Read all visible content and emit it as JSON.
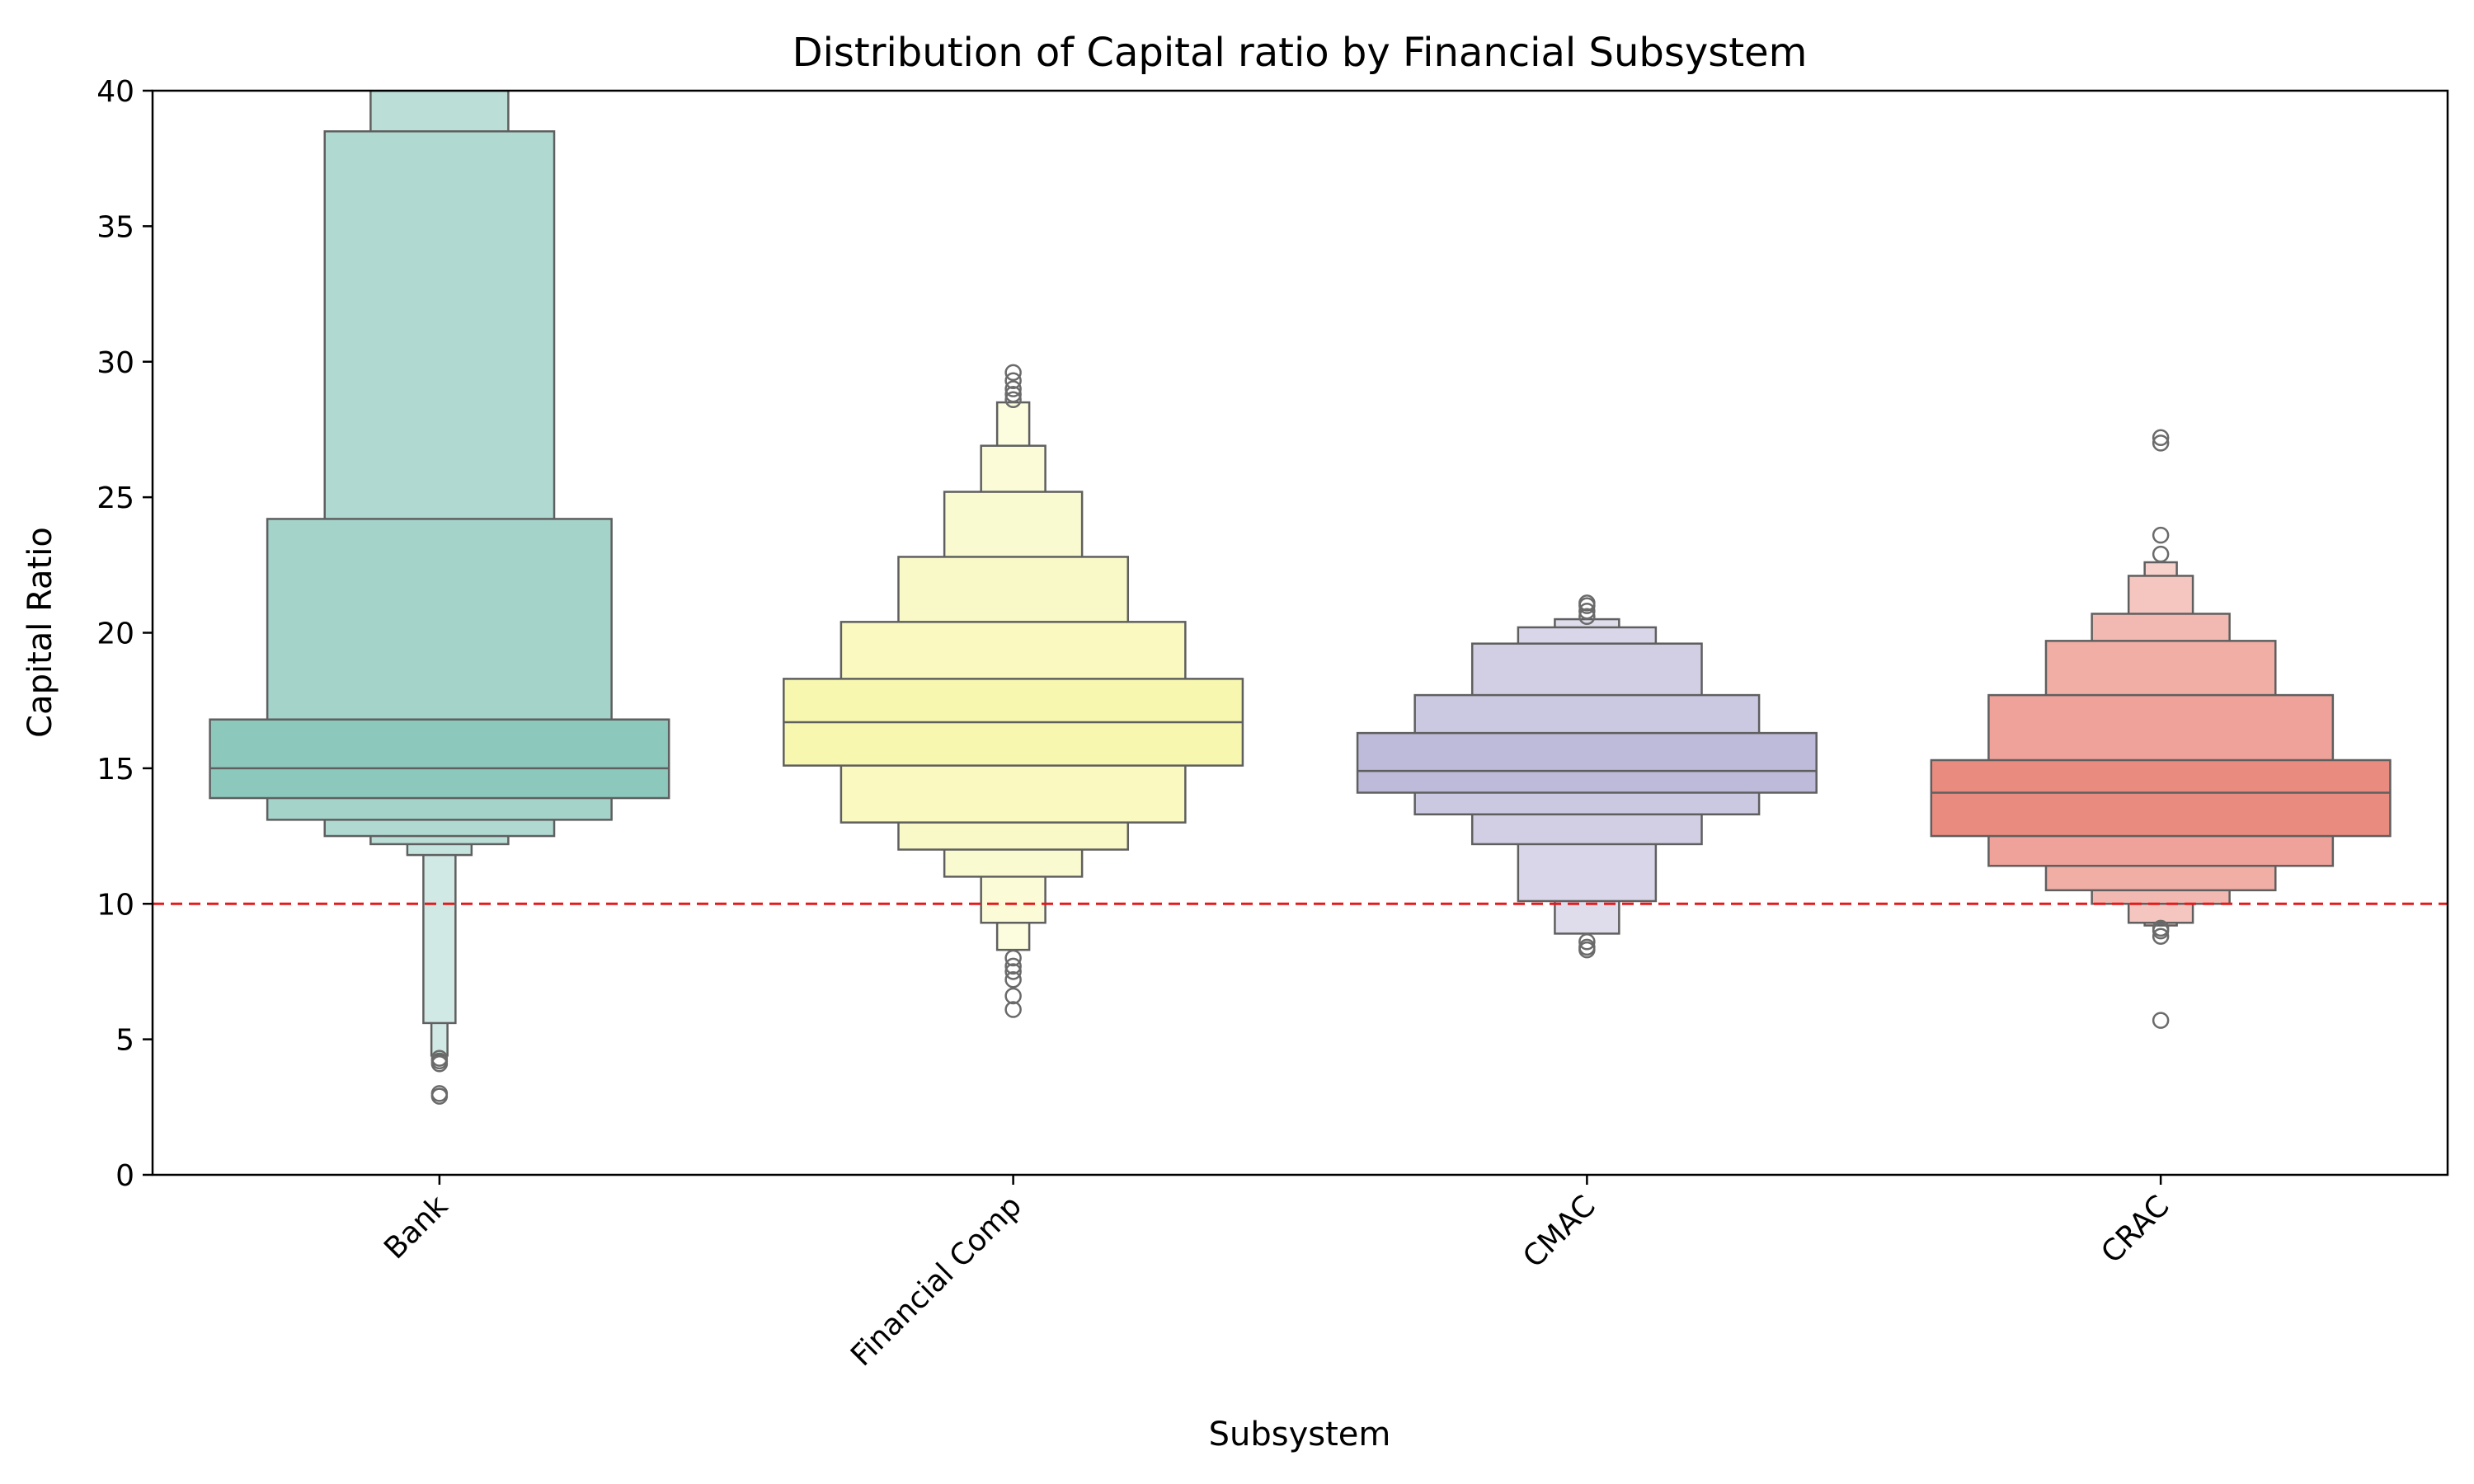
{
  "chart_data": {
    "type": "boxen",
    "title": "Distribution of Capital ratio by Financial Subsystem",
    "xlabel": "Subsystem",
    "ylabel": "Capital Ratio",
    "ylim": [
      0,
      40
    ],
    "yticks": [
      0,
      5,
      10,
      15,
      20,
      25,
      30,
      35,
      40
    ],
    "grid": false,
    "legend": "none",
    "reference_line": {
      "y": 10,
      "color": "#e41a1c",
      "style": "dashed"
    },
    "categories": [
      "Bank",
      "Financial Comp",
      "CMAC",
      "CRAC"
    ],
    "series": [
      {
        "category": "Bank",
        "color": "#8dc8bd",
        "median": 15.0,
        "letter_values": [
          {
            "low": 13.9,
            "high": 16.8
          },
          {
            "low": 13.1,
            "high": 24.2
          },
          {
            "low": 12.5,
            "high": 38.5
          },
          {
            "low": 12.2,
            "high": 40.0
          },
          {
            "low": 11.8,
            "high": 40.0
          },
          {
            "low": 5.6,
            "high": 40.0
          },
          {
            "low": 4.4,
            "high": 40.0
          }
        ],
        "outliers": [
          4.1,
          4.2,
          4.3,
          2.9,
          3.0
        ]
      },
      {
        "category": "Financial Comp",
        "color": "#f7f7b0",
        "median": 16.7,
        "letter_values": [
          {
            "low": 15.1,
            "high": 18.3
          },
          {
            "low": 13.0,
            "high": 20.4
          },
          {
            "low": 12.0,
            "high": 22.8
          },
          {
            "low": 11.0,
            "high": 25.2
          },
          {
            "low": 9.3,
            "high": 26.9
          },
          {
            "low": 8.3,
            "high": 28.5
          }
        ],
        "outliers": [
          6.1,
          6.6,
          7.2,
          7.5,
          7.7,
          8.0,
          28.6,
          28.8,
          29.0,
          29.3,
          29.6
        ]
      },
      {
        "category": "CMAC",
        "color": "#bebad9",
        "median": 14.9,
        "letter_values": [
          {
            "low": 14.1,
            "high": 16.3
          },
          {
            "low": 13.3,
            "high": 17.7
          },
          {
            "low": 12.2,
            "high": 19.6
          },
          {
            "low": 10.1,
            "high": 20.2
          },
          {
            "low": 8.9,
            "high": 20.5
          }
        ],
        "outliers": [
          8.3,
          8.4,
          8.6,
          20.6,
          20.8,
          21.0,
          21.1
        ]
      },
      {
        "category": "CRAC",
        "color": "#ea8b7f",
        "median": 14.1,
        "letter_values": [
          {
            "low": 12.5,
            "high": 15.3
          },
          {
            "low": 11.4,
            "high": 17.7
          },
          {
            "low": 10.5,
            "high": 19.7
          },
          {
            "low": 10.0,
            "high": 20.7
          },
          {
            "low": 9.3,
            "high": 22.1
          },
          {
            "low": 9.2,
            "high": 22.6
          }
        ],
        "outliers": [
          5.7,
          8.8,
          9.0,
          9.1,
          22.9,
          23.6,
          27.0,
          27.2
        ]
      }
    ]
  }
}
